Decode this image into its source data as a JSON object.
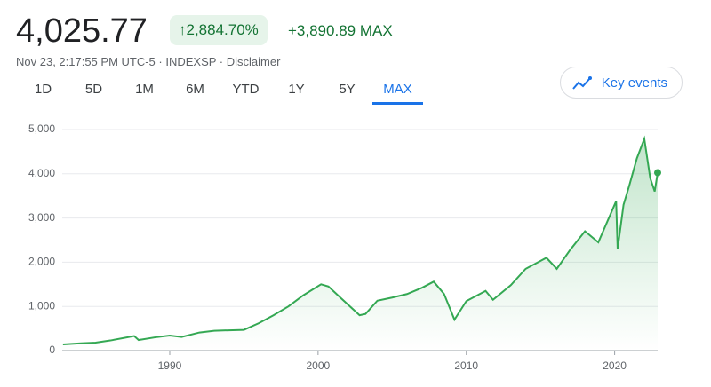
{
  "header": {
    "price": "4,025.77",
    "change_pct": "2,884.70%",
    "change_abs": "+3,890.89 MAX",
    "meta": "Nov 23, 2:17:55 PM UTC-5 · INDEXSP · Disclaimer",
    "tabs": [
      "1D",
      "5D",
      "1M",
      "6M",
      "YTD",
      "1Y",
      "5Y",
      "MAX"
    ],
    "active_tab": "MAX",
    "key_events": "Key events"
  },
  "chart_data": {
    "type": "line",
    "color": "#34a853",
    "grid": true,
    "x": [
      1982.8,
      1984,
      1985,
      1986,
      1987.6,
      1987.9,
      1989,
      1990,
      1990.8,
      1992,
      1993,
      1994,
      1995,
      1996,
      1997,
      1998,
      1999,
      2000.2,
      2000.7,
      2001.5,
      2002.8,
      2003.2,
      2004,
      2005,
      2006,
      2007,
      2007.8,
      2008.5,
      2009.2,
      2010,
      2011.3,
      2011.8,
      2013,
      2014,
      2015.4,
      2016.1,
      2017,
      2018,
      2018.9,
      2020.1,
      2020.2,
      2020.6,
      2021,
      2021.5,
      2022,
      2022.4,
      2022.7,
      2022.9
    ],
    "values": [
      140,
      165,
      180,
      230,
      330,
      240,
      300,
      340,
      310,
      410,
      450,
      460,
      470,
      620,
      800,
      1000,
      1250,
      1500,
      1450,
      1200,
      800,
      830,
      1130,
      1200,
      1280,
      1420,
      1560,
      1280,
      700,
      1120,
      1350,
      1150,
      1480,
      1850,
      2100,
      1850,
      2280,
      2700,
      2450,
      3380,
      2300,
      3300,
      3750,
      4350,
      4790,
      3900,
      3600,
      4025
    ],
    "xlim": [
      1982.75,
      2022.9
    ],
    "xticks": [
      1990,
      2000,
      2010,
      2020
    ],
    "ylim": [
      0,
      5000
    ],
    "yticks": [
      0,
      {
        "value": 1000,
        "label": "1,000"
      },
      {
        "value": 2000,
        "label": "2,000"
      },
      {
        "value": 3000,
        "label": "3,000"
      },
      {
        "value": 4000,
        "label": "4,000"
      },
      {
        "value": 5000,
        "label": "5,000"
      }
    ]
  }
}
